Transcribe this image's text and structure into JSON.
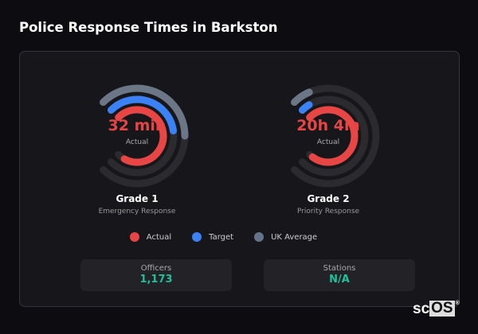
{
  "title": "Police Response Times in Barkston",
  "gauges": [
    {
      "value": "32 min",
      "sub": "Actual",
      "name": "Grade 1",
      "desc": "Emergency Response",
      "fills": {
        "actual": 0.94,
        "target": 0.47,
        "uk_average": 0.5
      }
    },
    {
      "value": "20h 4m",
      "sub": "Actual",
      "name": "Grade 2",
      "desc": "Priority Response",
      "fills": {
        "actual": 0.97,
        "target": 0.05,
        "uk_average": 0.08
      }
    }
  ],
  "legend": [
    {
      "label": "Actual",
      "color": "#e84545"
    },
    {
      "label": "Target",
      "color": "#3b82f6"
    },
    {
      "label": "UK Average",
      "color": "#64748b"
    }
  ],
  "stats": [
    {
      "label": "Officers",
      "value": "1,173"
    },
    {
      "label": "Stations",
      "value": "N/A"
    }
  ],
  "colors": {
    "actual": "#e84545",
    "target": "#3b82f6",
    "uk_average": "#6b7686",
    "track": "#2a2a2f",
    "value_accent": "#1ec29a"
  },
  "logo": "scOS"
}
